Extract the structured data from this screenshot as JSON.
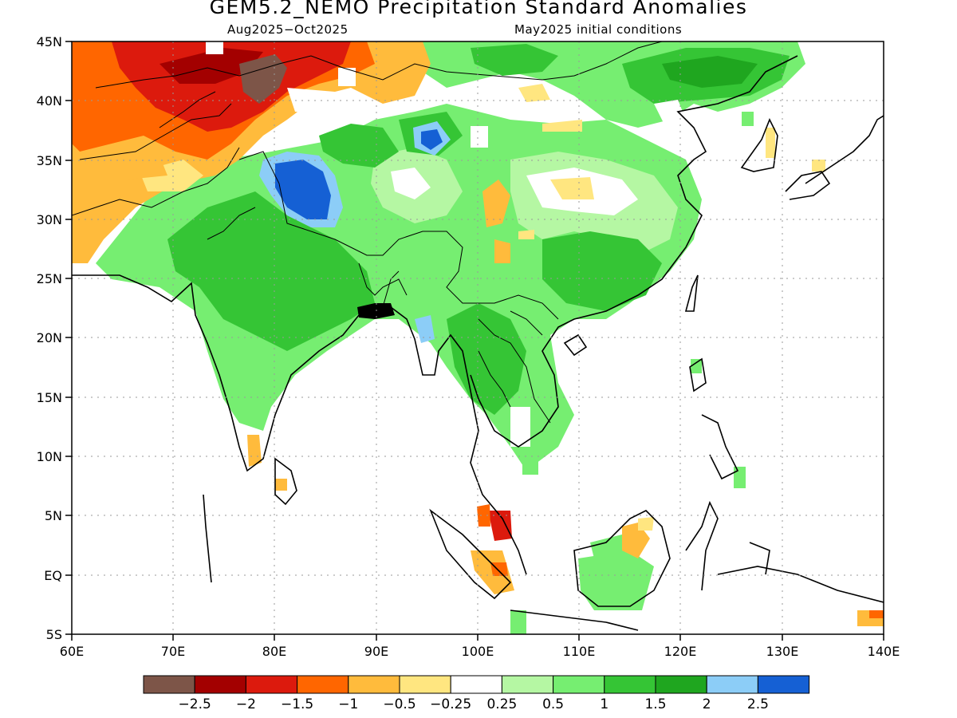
{
  "title": "GEM5.2_NEMO Precipitation Standard Anomalies",
  "subtitle_left": "Aug2025−Oct2025",
  "subtitle_right": "May2025 initial conditions",
  "map": {
    "lon_labels": [
      "60E",
      "70E",
      "80E",
      "90E",
      "100E",
      "110E",
      "120E",
      "130E",
      "140E"
    ],
    "lat_labels": [
      "45N",
      "40N",
      "35N",
      "30N",
      "25N",
      "20N",
      "15N",
      "10N",
      "5N",
      "EQ",
      "5S"
    ],
    "lon_range": [
      60,
      140
    ],
    "lat_range": [
      -5,
      45
    ]
  },
  "colorbar": {
    "colors": [
      "#7d5548",
      "#a30000",
      "#dc1a0d",
      "#ff6600",
      "#ffbb3c",
      "#ffe680",
      "#ffffff",
      "#b5f7a3",
      "#76ee71",
      "#35c535",
      "#1fa61f",
      "#8ccdf7",
      "#1560d4"
    ],
    "labels": [
      "−2.5",
      "−2",
      "−1.5",
      "−1",
      "−0.5",
      "−0.25",
      "0.25",
      "0.5",
      "1",
      "1.5",
      "2",
      "2.5"
    ]
  }
}
